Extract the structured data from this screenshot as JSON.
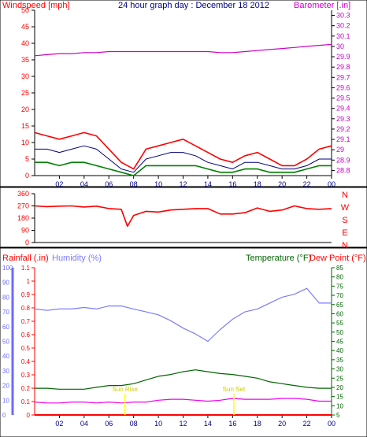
{
  "header": {
    "left_label": "Windspeed [mph]",
    "title": "24 hour graph day : December 18 2012",
    "right_label": "Barometer [.in]"
  },
  "bottom_header": {
    "rainfall_label": "Rainfall (.in)",
    "humidity_label": "Humidity (%)",
    "temperature_label": "Temperature (°F)",
    "dewpoint_label": "Dew Point (°F)"
  },
  "colors": {
    "wind_gust": "#ff0000",
    "wind_avg": "#000080",
    "wind_speed": "#008000",
    "barometer": "#cc00cc",
    "direction": "#ff0000",
    "rain": "#ff0000",
    "humidity": "#7b7bff",
    "temperature": "#006400",
    "dewpoint": "#ee00ee",
    "sun_marker": "#ffff00",
    "axis": "#000080"
  },
  "chart_data": [
    {
      "type": "line",
      "title": "24 hour graph day : December 18 2012",
      "x_ticks": [
        "02",
        "04",
        "06",
        "08",
        "10",
        "12",
        "14",
        "16",
        "18",
        "20",
        "22",
        "00"
      ],
      "y_left": {
        "label": "Windspeed [mph]",
        "ticks": [
          0,
          5,
          10,
          15,
          20,
          25,
          30,
          35,
          40,
          45,
          50
        ],
        "lim": [
          0,
          50
        ]
      },
      "y_right": {
        "label": "Barometer [.in]",
        "ticks": [
          "28.8",
          "28.9",
          "29",
          "29.1",
          "29.2",
          "29.3",
          "29.4",
          "29.5",
          "29.6",
          "29.7",
          "29.8",
          "29.9",
          "30",
          "30.1",
          "30.2",
          "30.3"
        ],
        "lim": [
          28.75,
          30.35
        ]
      },
      "hours": [
        0,
        1,
        2,
        3,
        4,
        5,
        6,
        7,
        8,
        9,
        10,
        11,
        12,
        13,
        14,
        15,
        16,
        17,
        18,
        19,
        20,
        21,
        22,
        23,
        24
      ],
      "series": [
        {
          "values": [
            13,
            12,
            11,
            12,
            13,
            12,
            8,
            4,
            2,
            8,
            9,
            10,
            11,
            9,
            7,
            5,
            4,
            6,
            7,
            5,
            3,
            3,
            5,
            8,
            9
          ]
        },
        {
          "values": [
            8,
            8,
            7,
            8,
            9,
            8,
            5,
            2,
            1,
            5,
            6,
            7,
            7,
            6,
            4,
            3,
            2,
            4,
            4,
            3,
            2,
            2,
            3,
            5,
            5
          ]
        },
        {
          "values": [
            4,
            4,
            3,
            4,
            4,
            3,
            2,
            1,
            0,
            3,
            3,
            3,
            3,
            3,
            2,
            1,
            1,
            2,
            2,
            1,
            1,
            1,
            2,
            3,
            3
          ]
        },
        {
          "name": "Barometer [.in]",
          "axis": "right",
          "values": [
            29.91,
            29.92,
            29.93,
            29.93,
            29.94,
            29.94,
            29.95,
            29.95,
            29.95,
            29.95,
            29.95,
            29.95,
            29.95,
            29.95,
            29.95,
            29.94,
            29.94,
            29.95,
            29.96,
            29.97,
            29.98,
            29.99,
            30.0,
            30.01,
            30.02
          ]
        }
      ]
    },
    {
      "type": "line",
      "x_ticks": [
        "02",
        "04",
        "06",
        "08",
        "10",
        "12",
        "14",
        "16",
        "18",
        "20",
        "22",
        "00"
      ],
      "y_left": {
        "ticks": [
          0,
          90,
          180,
          270,
          360
        ],
        "lim": [
          0,
          360
        ]
      },
      "y_right": {
        "ticks": [
          "N",
          "W",
          "S",
          "E",
          "N"
        ]
      },
      "hours": [
        0,
        1,
        2,
        3,
        4,
        5,
        6,
        7,
        7.5,
        8,
        9,
        10,
        11,
        12,
        13,
        14,
        15,
        16,
        17,
        18,
        19,
        20,
        21,
        22,
        23,
        24
      ],
      "series": [
        {
          "values": [
            270,
            265,
            268,
            270,
            262,
            268,
            250,
            245,
            120,
            200,
            230,
            225,
            240,
            245,
            250,
            250,
            210,
            210,
            220,
            255,
            230,
            240,
            270,
            250,
            245,
            250
          ]
        }
      ]
    },
    {
      "type": "line",
      "x_ticks": [
        "02",
        "04",
        "06",
        "08",
        "10",
        "12",
        "14",
        "16",
        "18",
        "20",
        "22",
        "00"
      ],
      "y_left_rain": {
        "label": "Rainfall (.in)",
        "ticks": [
          "0",
          "0.1",
          "0.2",
          "0.3",
          "0.4",
          "0.5",
          "0.6",
          "0.7",
          "0.8",
          "0.9",
          "1",
          "1.1"
        ],
        "lim": [
          0,
          1.1
        ]
      },
      "y_left_humidity": {
        "label": "Humidity (%)",
        "ticks": [
          0,
          10,
          20,
          30,
          40,
          50,
          60,
          70,
          80,
          90,
          100
        ],
        "lim": [
          0,
          100
        ]
      },
      "y_right": {
        "label": "Temperature (°F)",
        "ticks": [
          5,
          10,
          15,
          20,
          25,
          30,
          35,
          40,
          45,
          50,
          55,
          60,
          65,
          70,
          75,
          80,
          85
        ],
        "lim": [
          5,
          85
        ]
      },
      "hours": [
        0,
        1,
        2,
        3,
        4,
        5,
        6,
        7,
        8,
        9,
        10,
        11,
        12,
        13,
        14,
        15,
        16,
        17,
        18,
        19,
        20,
        21,
        22,
        23,
        24
      ],
      "series": [
        {
          "name": "Rainfall (.in)",
          "axis": "rain",
          "values": [
            0,
            0,
            0,
            0,
            0,
            0,
            0,
            0,
            0,
            0,
            0,
            0,
            0,
            0,
            0,
            0,
            0,
            0,
            0,
            0,
            0,
            0,
            0,
            0,
            0
          ]
        },
        {
          "name": "Humidity (%)",
          "axis": "humidity",
          "values": [
            72,
            71,
            72,
            72,
            73,
            72,
            74,
            74,
            72,
            70,
            68,
            64,
            59,
            55,
            50,
            58,
            65,
            70,
            72,
            76,
            80,
            82,
            86,
            76,
            76
          ]
        },
        {
          "name": "Temperature (°F)",
          "axis": "right",
          "values": [
            19.5,
            19.5,
            19,
            19,
            19,
            20,
            21,
            21,
            22,
            24,
            26,
            27,
            28.5,
            29.5,
            28.5,
            27.5,
            27,
            26,
            25,
            23,
            22,
            21,
            20,
            19.5,
            19.5
          ]
        },
        {
          "name": "Dew Point (°F)",
          "axis": "right",
          "values": [
            12,
            11.5,
            11.5,
            12,
            12,
            11.5,
            12,
            11.5,
            12,
            12,
            13,
            13.5,
            13.5,
            13,
            12.5,
            13,
            14,
            13.5,
            13.5,
            13.5,
            14,
            14,
            13.5,
            12.5,
            12.5
          ]
        }
      ],
      "annotations": [
        {
          "text": "Sun Rise",
          "hour": 7.3
        },
        {
          "text": "Sun Set",
          "hour": 16.1
        }
      ]
    }
  ]
}
